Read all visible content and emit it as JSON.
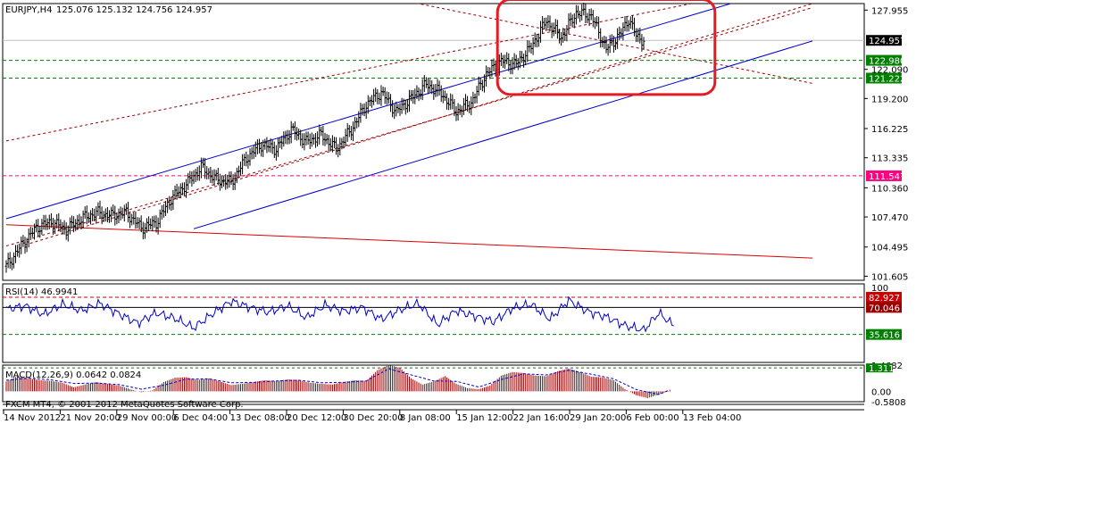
{
  "chart_data": [
    {
      "type": "candlestick",
      "symbol_label": "EURJPY,H4",
      "ohlc_label": "125.076 125.132 124.756 124.957",
      "price_ticks": [
        "127.955",
        "122.090",
        "119.200",
        "116.225",
        "113.335",
        "110.360",
        "107.470",
        "104.495",
        "101.605"
      ],
      "price_tick_values": [
        127.955,
        122.09,
        119.2,
        116.225,
        113.335,
        110.36,
        107.47,
        104.495,
        101.605
      ],
      "ylim": [
        101.2,
        128.6
      ],
      "current_price": {
        "label": "124.957",
        "value": 124.957,
        "color": "#000000"
      },
      "levels": [
        {
          "label": "122.980",
          "value": 122.98,
          "color": "#008000",
          "style": "dashed"
        },
        {
          "label": "121.222",
          "value": 121.222,
          "color": "#008000",
          "style": "dashed"
        },
        {
          "label": "111.547",
          "value": 111.547,
          "color": "#ff0080",
          "style": "dashed"
        }
      ],
      "time_labels": [
        "14 Nov 2012",
        "21 Nov 20:00",
        "29 Nov 00:00",
        "6 Dec 04:00",
        "13 Dec 08:00",
        "20 Dec 12:00",
        "30 Dec 20:00",
        "8 Jan 08:00",
        "15 Jan 12:00",
        "22 Jan 16:00",
        "29 Jan 20:00",
        "6 Feb 00:00",
        "13 Feb 04:00"
      ],
      "price_path": [
        [
          0,
          102.6
        ],
        [
          8,
          104.6
        ],
        [
          16,
          106.4
        ],
        [
          24,
          107.0
        ],
        [
          32,
          106.2
        ],
        [
          40,
          107.3
        ],
        [
          48,
          107.9
        ],
        [
          56,
          107.6
        ],
        [
          64,
          107.9
        ],
        [
          72,
          106.4
        ],
        [
          80,
          106.9
        ],
        [
          88,
          109.3
        ],
        [
          96,
          110.7
        ],
        [
          104,
          112.4
        ],
        [
          112,
          111.2
        ],
        [
          120,
          110.9
        ],
        [
          128,
          113.3
        ],
        [
          136,
          114.6
        ],
        [
          144,
          114.2
        ],
        [
          152,
          116.1
        ],
        [
          160,
          114.9
        ],
        [
          168,
          115.6
        ],
        [
          176,
          114.2
        ],
        [
          184,
          116.1
        ],
        [
          192,
          118.6
        ],
        [
          200,
          119.8
        ],
        [
          208,
          117.9
        ],
        [
          216,
          119.2
        ],
        [
          224,
          120.6
        ],
        [
          232,
          119.7
        ],
        [
          240,
          117.9
        ],
        [
          248,
          118.8
        ],
        [
          256,
          121.6
        ],
        [
          264,
          122.9
        ],
        [
          272,
          122.6
        ],
        [
          280,
          124.3
        ],
        [
          288,
          126.9
        ],
        [
          296,
          125.2
        ],
        [
          304,
          127.7
        ],
        [
          312,
          127.4
        ],
        [
          320,
          124.1
        ],
        [
          328,
          125.7
        ],
        [
          332,
          127.1
        ],
        [
          336,
          125.4
        ],
        [
          340,
          124.96
        ]
      ],
      "channels": [
        {
          "name": "blue-upper",
          "color": "#0000cc",
          "style": "solid",
          "from": [
            0,
            107.3
          ],
          "to": [
            430,
            131.0
          ]
        },
        {
          "name": "blue-lower",
          "color": "#0000cc",
          "style": "solid",
          "from": [
            100,
            106.3
          ],
          "to": [
            430,
            124.9
          ]
        },
        {
          "name": "red-trend",
          "color": "#dd0000",
          "style": "solid",
          "from": [
            0,
            106.7
          ],
          "to": [
            430,
            103.4
          ]
        },
        {
          "name": "dashed-top",
          "color": "#990000",
          "style": "dashed",
          "from": [
            0,
            104.6
          ],
          "to": [
            430,
            128.2
          ]
        },
        {
          "name": "dashed-mid",
          "color": "#990000",
          "style": "dashed",
          "from": [
            10,
            104.7
          ],
          "to": [
            430,
            128.6
          ]
        },
        {
          "name": "dashed-upper-edge",
          "color": "#990000",
          "style": "dashed",
          "from": [
            0,
            115.0
          ],
          "to": [
            430,
            131.0
          ]
        },
        {
          "name": "dashed-down",
          "color": "#990000",
          "style": "dashed",
          "from": [
            140,
            131.6
          ],
          "to": [
            430,
            120.7
          ]
        }
      ],
      "highlight_box": {
        "from_index": 262,
        "to_index": 378,
        "y_range": [
          119.6,
          129.0
        ],
        "color": "#e31b23"
      },
      "grid": false
    },
    {
      "type": "line",
      "name": "RSI",
      "label": "RSI(14) 46.9941",
      "ylim": [
        0,
        100
      ],
      "ticks": [
        "100"
      ],
      "levels": [
        {
          "label": "82.927",
          "value": 82.927,
          "color": "#cc0000",
          "bg": "#cc0000",
          "style": "dashed"
        },
        {
          "label": "70.046",
          "value": 70.046,
          "color": "#000000",
          "bg": "#990000",
          "style": "solid"
        },
        {
          "label": "35.616",
          "value": 35.616,
          "color": "#008000",
          "bg": "#008000",
          "style": "dashed"
        }
      ],
      "values": [
        [
          0,
          68
        ],
        [
          10,
          72
        ],
        [
          20,
          61
        ],
        [
          30,
          74
        ],
        [
          40,
          66
        ],
        [
          50,
          75
        ],
        [
          60,
          62
        ],
        [
          70,
          50
        ],
        [
          80,
          63
        ],
        [
          90,
          56
        ],
        [
          100,
          44
        ],
        [
          110,
          62
        ],
        [
          120,
          78
        ],
        [
          130,
          70
        ],
        [
          140,
          64
        ],
        [
          150,
          72
        ],
        [
          160,
          57
        ],
        [
          170,
          73
        ],
        [
          180,
          65
        ],
        [
          190,
          70
        ],
        [
          200,
          55
        ],
        [
          210,
          67
        ],
        [
          220,
          75
        ],
        [
          230,
          48
        ],
        [
          240,
          66
        ],
        [
          250,
          59
        ],
        [
          260,
          52
        ],
        [
          270,
          69
        ],
        [
          280,
          74
        ],
        [
          290,
          55
        ],
        [
          300,
          79
        ],
        [
          310,
          65
        ],
        [
          320,
          58
        ],
        [
          330,
          47
        ],
        [
          340,
          41
        ],
        [
          348,
          63
        ],
        [
          356,
          47
        ]
      ]
    },
    {
      "type": "bar",
      "name": "MACD",
      "label": "MACD(12,26,9) 0.0642 0.0824",
      "ylim": [
        -0.5808,
        1.4682
      ],
      "ticks": [
        "1.4682",
        "0.00",
        "-0.5808"
      ],
      "level": {
        "label": "1.311",
        "value": 1.311,
        "color": "#008000"
      },
      "histogram": [
        [
          0,
          0.55
        ],
        [
          6,
          0.85
        ],
        [
          12,
          0.72
        ],
        [
          18,
          0.62
        ],
        [
          24,
          0.58
        ],
        [
          30,
          0.48
        ],
        [
          36,
          0.22
        ],
        [
          42,
          0.38
        ],
        [
          48,
          0.52
        ],
        [
          54,
          0.42
        ],
        [
          60,
          0.33
        ],
        [
          66,
          0.12
        ],
        [
          72,
          -0.05
        ],
        [
          78,
          0.05
        ],
        [
          84,
          0.52
        ],
        [
          90,
          0.76
        ],
        [
          96,
          0.79
        ],
        [
          102,
          0.64
        ],
        [
          108,
          0.72
        ],
        [
          114,
          0.55
        ],
        [
          120,
          0.35
        ],
        [
          126,
          0.42
        ],
        [
          132,
          0.52
        ],
        [
          138,
          0.62
        ],
        [
          144,
          0.57
        ],
        [
          150,
          0.67
        ],
        [
          156,
          0.62
        ],
        [
          162,
          0.48
        ],
        [
          168,
          0.42
        ],
        [
          174,
          0.38
        ],
        [
          180,
          0.52
        ],
        [
          186,
          0.62
        ],
        [
          192,
          0.58
        ],
        [
          198,
          1.18
        ],
        [
          204,
          1.48
        ],
        [
          210,
          1.32
        ],
        [
          216,
          0.72
        ],
        [
          222,
          0.38
        ],
        [
          228,
          0.55
        ],
        [
          234,
          0.85
        ],
        [
          240,
          0.42
        ],
        [
          246,
          0.18
        ],
        [
          252,
          0.12
        ],
        [
          258,
          0.32
        ],
        [
          264,
          0.88
        ],
        [
          270,
          1.08
        ],
        [
          276,
          1.02
        ],
        [
          282,
          0.88
        ],
        [
          288,
          0.85
        ],
        [
          294,
          1.12
        ],
        [
          300,
          1.28
        ],
        [
          306,
          1.08
        ],
        [
          312,
          0.82
        ],
        [
          318,
          0.78
        ],
        [
          324,
          0.62
        ],
        [
          330,
          0.12
        ],
        [
          336,
          -0.22
        ],
        [
          342,
          -0.38
        ],
        [
          348,
          -0.18
        ],
        [
          354,
          0.06
        ]
      ],
      "signal": [
        [
          0,
          0.62
        ],
        [
          12,
          0.74
        ],
        [
          24,
          0.64
        ],
        [
          36,
          0.44
        ],
        [
          48,
          0.46
        ],
        [
          60,
          0.38
        ],
        [
          72,
          0.12
        ],
        [
          84,
          0.34
        ],
        [
          96,
          0.68
        ],
        [
          108,
          0.7
        ],
        [
          120,
          0.48
        ],
        [
          132,
          0.5
        ],
        [
          144,
          0.58
        ],
        [
          156,
          0.62
        ],
        [
          168,
          0.48
        ],
        [
          180,
          0.5
        ],
        [
          192,
          0.58
        ],
        [
          204,
          1.26
        ],
        [
          216,
          0.92
        ],
        [
          228,
          0.58
        ],
        [
          240,
          0.56
        ],
        [
          252,
          0.24
        ],
        [
          264,
          0.66
        ],
        [
          276,
          0.98
        ],
        [
          288,
          0.92
        ],
        [
          300,
          1.18
        ],
        [
          312,
          0.96
        ],
        [
          324,
          0.7
        ],
        [
          336,
          0.1
        ],
        [
          348,
          -0.18
        ],
        [
          354,
          0.08
        ]
      ]
    }
  ],
  "footer": {
    "copyright": "FXCM MT4, © 2001-2012 MetaQuotes Software Corp."
  }
}
